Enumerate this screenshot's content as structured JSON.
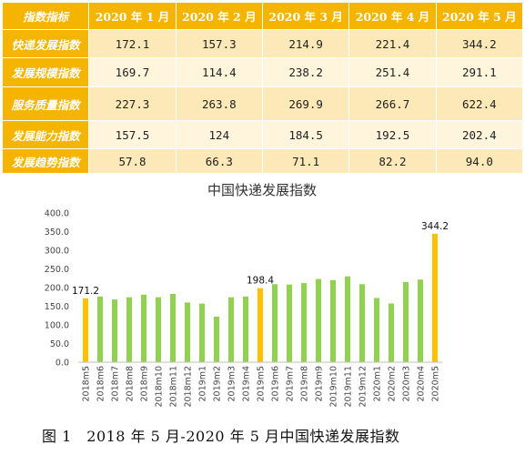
{
  "table": {
    "corner": "指数指标",
    "columns": [
      "2020 年 1 月",
      "2020 年 2 月",
      "2020 年 3 月",
      "2020 年 4 月",
      "2020 年 5 月"
    ],
    "rows": [
      {
        "label": "快递发展指数",
        "values": [
          "172.1",
          "157.3",
          "214.9",
          "221.4",
          "344.2"
        ]
      },
      {
        "label": "发展规模指数",
        "values": [
          "169.7",
          "114.4",
          "238.2",
          "251.4",
          "291.1"
        ]
      },
      {
        "label": "服务质量指数",
        "values": [
          "227.3",
          "263.8",
          "269.9",
          "266.7",
          "622.4"
        ]
      },
      {
        "label": "发展能力指数",
        "values": [
          "157.5",
          "124",
          "184.5",
          "192.5",
          "202.4"
        ]
      },
      {
        "label": "发展趋势指数",
        "values": [
          "57.8",
          "66.3",
          "71.1",
          "82.2",
          "94.0"
        ]
      }
    ]
  },
  "chart_data": {
    "type": "bar",
    "title": "中国快递发展指数",
    "categories": [
      "2018m5",
      "2018m6",
      "2018m7",
      "2018m8",
      "2018m9",
      "2018m10",
      "2018m11",
      "2018m12",
      "2019m1",
      "2019m2",
      "2019m3",
      "2019m4",
      "2019m5",
      "2019m6",
      "2019m7",
      "2019m8",
      "2019m9",
      "2019m10",
      "2019m11",
      "2019m12",
      "2020m1",
      "2020m2",
      "2020m3",
      "2020m4",
      "2020m5"
    ],
    "values": [
      171.2,
      176,
      168,
      174,
      181,
      174,
      183,
      160,
      157,
      122,
      174,
      176,
      198.4,
      209,
      208,
      212,
      223,
      220,
      230,
      209,
      172.1,
      157.3,
      214.9,
      221.4,
      344.2
    ],
    "highlight_indices": [
      0,
      12,
      24
    ],
    "data_labels": {
      "0": "171.2",
      "12": "198.4",
      "24": "344.2"
    },
    "colors": {
      "normal": "#92d050",
      "highlight": "#ffc000"
    },
    "ylim": [
      0,
      400
    ],
    "yticks": [
      "0.0",
      "50.0",
      "100.0",
      "150.0",
      "200.0",
      "250.0",
      "300.0",
      "350.0",
      "400.0"
    ],
    "xlabel": "",
    "ylabel": "",
    "grid": false
  },
  "caption": "图 1　2018 年 5 月-2020 年 5 月中国快递发展指数"
}
